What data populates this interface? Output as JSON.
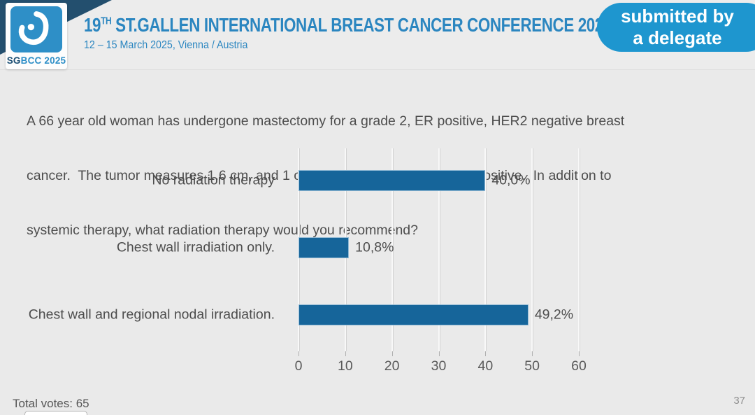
{
  "header": {
    "logo_sg": "SG",
    "logo_rest": "BCC 2025",
    "title_num": "19",
    "title_sup": "TH",
    "title_rest": " ST.GALLEN INTERNATIONAL BREAST CANCER CONFERENCE 2025",
    "subtitle": "12 – 15 March 2025, Vienna / Austria",
    "badge_line1": "submitted by",
    "badge_line2": "a delegate"
  },
  "question": {
    "lines": [
      "A 66 year old woman has undergone mastectomy for a grade 2, ER positive, HER2 negative breast",
      "cancer.  The tumor measures 1.6 cm, and 1 of 3 sentinel lymph nodes are positive.  In addition to",
      "systemic therapy, what radiation therapy would you recommend?"
    ]
  },
  "chart_data": {
    "type": "bar",
    "orientation": "horizontal",
    "categories": [
      "No radiation therapy",
      "Chest wall irradiation only.",
      "Chest wall and regional nodal irradiation."
    ],
    "values": [
      40.0,
      10.8,
      49.2
    ],
    "value_labels": [
      "40,0%",
      "10,8%",
      "49,2%"
    ],
    "xlim": [
      0,
      60
    ],
    "xticks": [
      0,
      10,
      20,
      30,
      40,
      50,
      60
    ],
    "xtick_labels": [
      "0",
      "10",
      "20",
      "30",
      "40",
      "50",
      "60"
    ],
    "grid": true,
    "legend": false,
    "title": "",
    "xlabel": "",
    "ylabel": "",
    "bar_color": "#16659a"
  },
  "footer": {
    "total_votes": "Total votes: 65",
    "page_number": "37"
  },
  "colors": {
    "accent_blue": "#2b86c0",
    "badge_blue": "#1e96cf",
    "logo_blue": "#2e8fc7",
    "corner_navy": "#234f6e",
    "bar_blue": "#16659a",
    "background": "#eaeaea"
  }
}
